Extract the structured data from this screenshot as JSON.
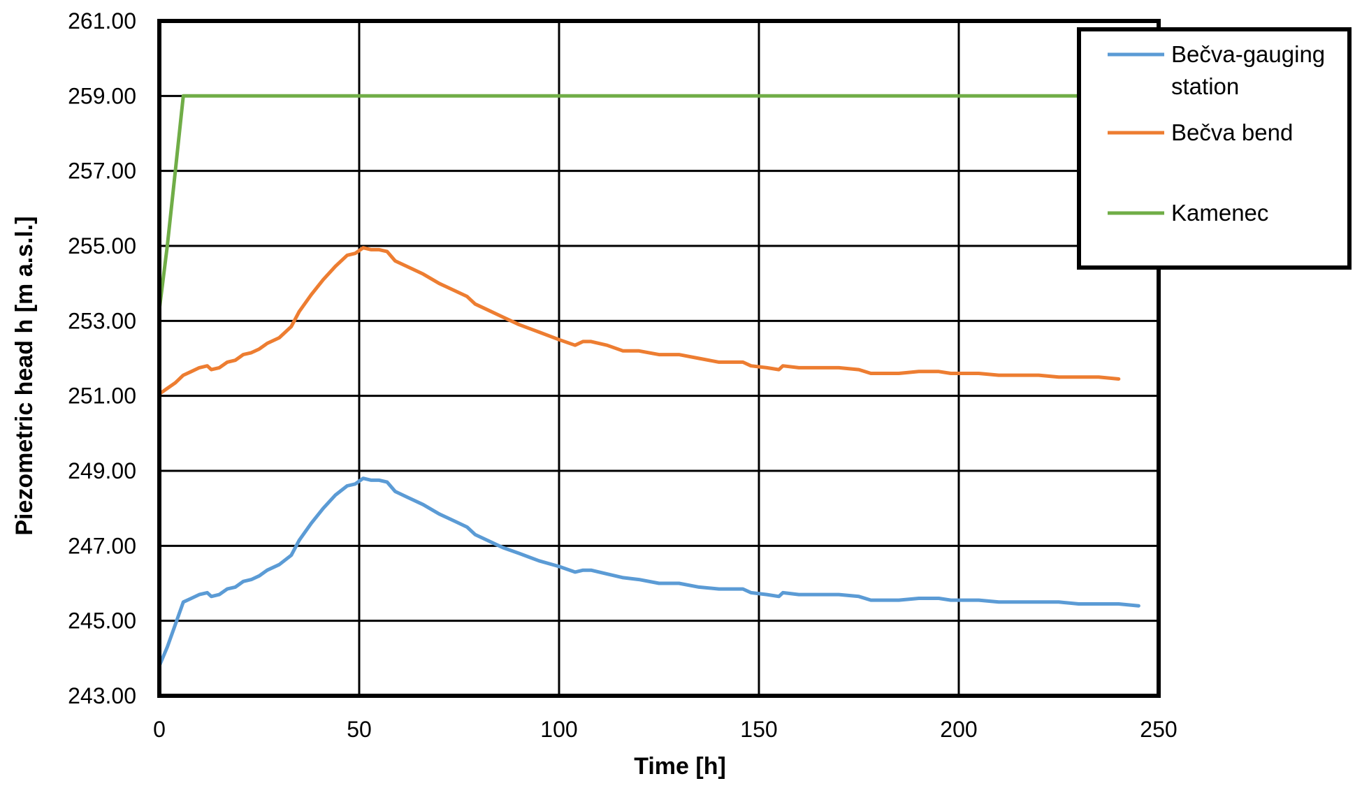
{
  "chart_data": {
    "type": "line",
    "title": "",
    "xlabel": "Time [h]",
    "ylabel": "Piezometric head h [m a.s.l.]",
    "xlim": [
      0,
      250
    ],
    "ylim": [
      243,
      261
    ],
    "x_ticks": [
      0,
      50,
      100,
      150,
      200,
      250
    ],
    "x_tick_labels": [
      "0",
      "50",
      "100",
      "150",
      "200",
      "250"
    ],
    "y_ticks": [
      243,
      245,
      247,
      249,
      251,
      253,
      255,
      257,
      259,
      261
    ],
    "y_tick_labels": [
      "243.00",
      "245.00",
      "247.00",
      "249.00",
      "251.00",
      "253.00",
      "255.00",
      "257.00",
      "259.00",
      "261.00"
    ],
    "grid": true,
    "legend_position": "top-right",
    "series": [
      {
        "name": "Bečva-gauging\nstation",
        "legend_lines": [
          "Bečva-gauging",
          "station"
        ],
        "color": "#5B9BD5",
        "points": [
          [
            0,
            243.8
          ],
          [
            2,
            244.3
          ],
          [
            4,
            244.9
          ],
          [
            6,
            245.5
          ],
          [
            8,
            245.6
          ],
          [
            10,
            245.7
          ],
          [
            12,
            245.75
          ],
          [
            13,
            245.65
          ],
          [
            15,
            245.7
          ],
          [
            17,
            245.85
          ],
          [
            19,
            245.9
          ],
          [
            21,
            246.05
          ],
          [
            23,
            246.1
          ],
          [
            25,
            246.2
          ],
          [
            27,
            246.35
          ],
          [
            30,
            246.5
          ],
          [
            33,
            246.75
          ],
          [
            35,
            247.15
          ],
          [
            38,
            247.6
          ],
          [
            41,
            248.0
          ],
          [
            44,
            248.35
          ],
          [
            47,
            248.6
          ],
          [
            49,
            248.65
          ],
          [
            51,
            248.8
          ],
          [
            53,
            248.75
          ],
          [
            55,
            248.75
          ],
          [
            57,
            248.7
          ],
          [
            59,
            248.45
          ],
          [
            62,
            248.3
          ],
          [
            66,
            248.1
          ],
          [
            70,
            247.85
          ],
          [
            74,
            247.65
          ],
          [
            77,
            247.5
          ],
          [
            79,
            247.3
          ],
          [
            82,
            247.15
          ],
          [
            86,
            246.95
          ],
          [
            90,
            246.8
          ],
          [
            95,
            246.6
          ],
          [
            100,
            246.45
          ],
          [
            104,
            246.3
          ],
          [
            106,
            246.35
          ],
          [
            108,
            246.35
          ],
          [
            112,
            246.25
          ],
          [
            116,
            246.15
          ],
          [
            120,
            246.1
          ],
          [
            125,
            246.0
          ],
          [
            130,
            246.0
          ],
          [
            135,
            245.9
          ],
          [
            140,
            245.85
          ],
          [
            146,
            245.85
          ],
          [
            148,
            245.75
          ],
          [
            152,
            245.7
          ],
          [
            155,
            245.65
          ],
          [
            156,
            245.75
          ],
          [
            160,
            245.7
          ],
          [
            165,
            245.7
          ],
          [
            170,
            245.7
          ],
          [
            175,
            245.65
          ],
          [
            178,
            245.55
          ],
          [
            180,
            245.55
          ],
          [
            185,
            245.55
          ],
          [
            190,
            245.6
          ],
          [
            195,
            245.6
          ],
          [
            198,
            245.55
          ],
          [
            205,
            245.55
          ],
          [
            210,
            245.5
          ],
          [
            220,
            245.5
          ],
          [
            225,
            245.5
          ],
          [
            230,
            245.45
          ],
          [
            235,
            245.45
          ],
          [
            240,
            245.45
          ],
          [
            245,
            245.4
          ]
        ]
      },
      {
        "name": "Bečva bend",
        "legend_lines": [
          "Bečva bend"
        ],
        "color": "#ED7D31",
        "points": [
          [
            0,
            251.05
          ],
          [
            2,
            251.2
          ],
          [
            4,
            251.35
          ],
          [
            6,
            251.55
          ],
          [
            8,
            251.65
          ],
          [
            10,
            251.75
          ],
          [
            12,
            251.8
          ],
          [
            13,
            251.7
          ],
          [
            15,
            251.75
          ],
          [
            17,
            251.9
          ],
          [
            19,
            251.95
          ],
          [
            21,
            252.1
          ],
          [
            23,
            252.15
          ],
          [
            25,
            252.25
          ],
          [
            27,
            252.4
          ],
          [
            30,
            252.55
          ],
          [
            33,
            252.85
          ],
          [
            35,
            253.25
          ],
          [
            38,
            253.7
          ],
          [
            41,
            254.1
          ],
          [
            44,
            254.45
          ],
          [
            47,
            254.75
          ],
          [
            49,
            254.8
          ],
          [
            51,
            254.95
          ],
          [
            53,
            254.9
          ],
          [
            55,
            254.9
          ],
          [
            57,
            254.85
          ],
          [
            59,
            254.6
          ],
          [
            62,
            254.45
          ],
          [
            66,
            254.25
          ],
          [
            70,
            254.0
          ],
          [
            74,
            253.8
          ],
          [
            77,
            253.65
          ],
          [
            79,
            253.45
          ],
          [
            82,
            253.3
          ],
          [
            86,
            253.1
          ],
          [
            90,
            252.9
          ],
          [
            95,
            252.7
          ],
          [
            100,
            252.5
          ],
          [
            104,
            252.35
          ],
          [
            106,
            252.45
          ],
          [
            108,
            252.45
          ],
          [
            112,
            252.35
          ],
          [
            116,
            252.2
          ],
          [
            120,
            252.2
          ],
          [
            125,
            252.1
          ],
          [
            130,
            252.1
          ],
          [
            135,
            252.0
          ],
          [
            140,
            251.9
          ],
          [
            146,
            251.9
          ],
          [
            148,
            251.8
          ],
          [
            152,
            251.75
          ],
          [
            155,
            251.7
          ],
          [
            156,
            251.8
          ],
          [
            160,
            251.75
          ],
          [
            165,
            251.75
          ],
          [
            170,
            251.75
          ],
          [
            175,
            251.7
          ],
          [
            178,
            251.6
          ],
          [
            180,
            251.6
          ],
          [
            185,
            251.6
          ],
          [
            190,
            251.65
          ],
          [
            195,
            251.65
          ],
          [
            198,
            251.6
          ],
          [
            205,
            251.6
          ],
          [
            210,
            251.55
          ],
          [
            220,
            251.55
          ],
          [
            225,
            251.5
          ],
          [
            230,
            251.5
          ],
          [
            235,
            251.5
          ],
          [
            240,
            251.45
          ]
        ]
      },
      {
        "name": "Kamenec",
        "legend_lines": [
          "Kamenec"
        ],
        "color": "#70AD47",
        "points": [
          [
            0,
            253.3
          ],
          [
            2,
            255.0
          ],
          [
            4,
            257.0
          ],
          [
            5,
            258.0
          ],
          [
            6,
            259.0
          ],
          [
            10,
            259.0
          ],
          [
            50,
            259.0
          ],
          [
            100,
            259.0
          ],
          [
            150,
            259.0
          ],
          [
            200,
            259.0
          ],
          [
            230,
            259.0
          ]
        ]
      }
    ]
  }
}
